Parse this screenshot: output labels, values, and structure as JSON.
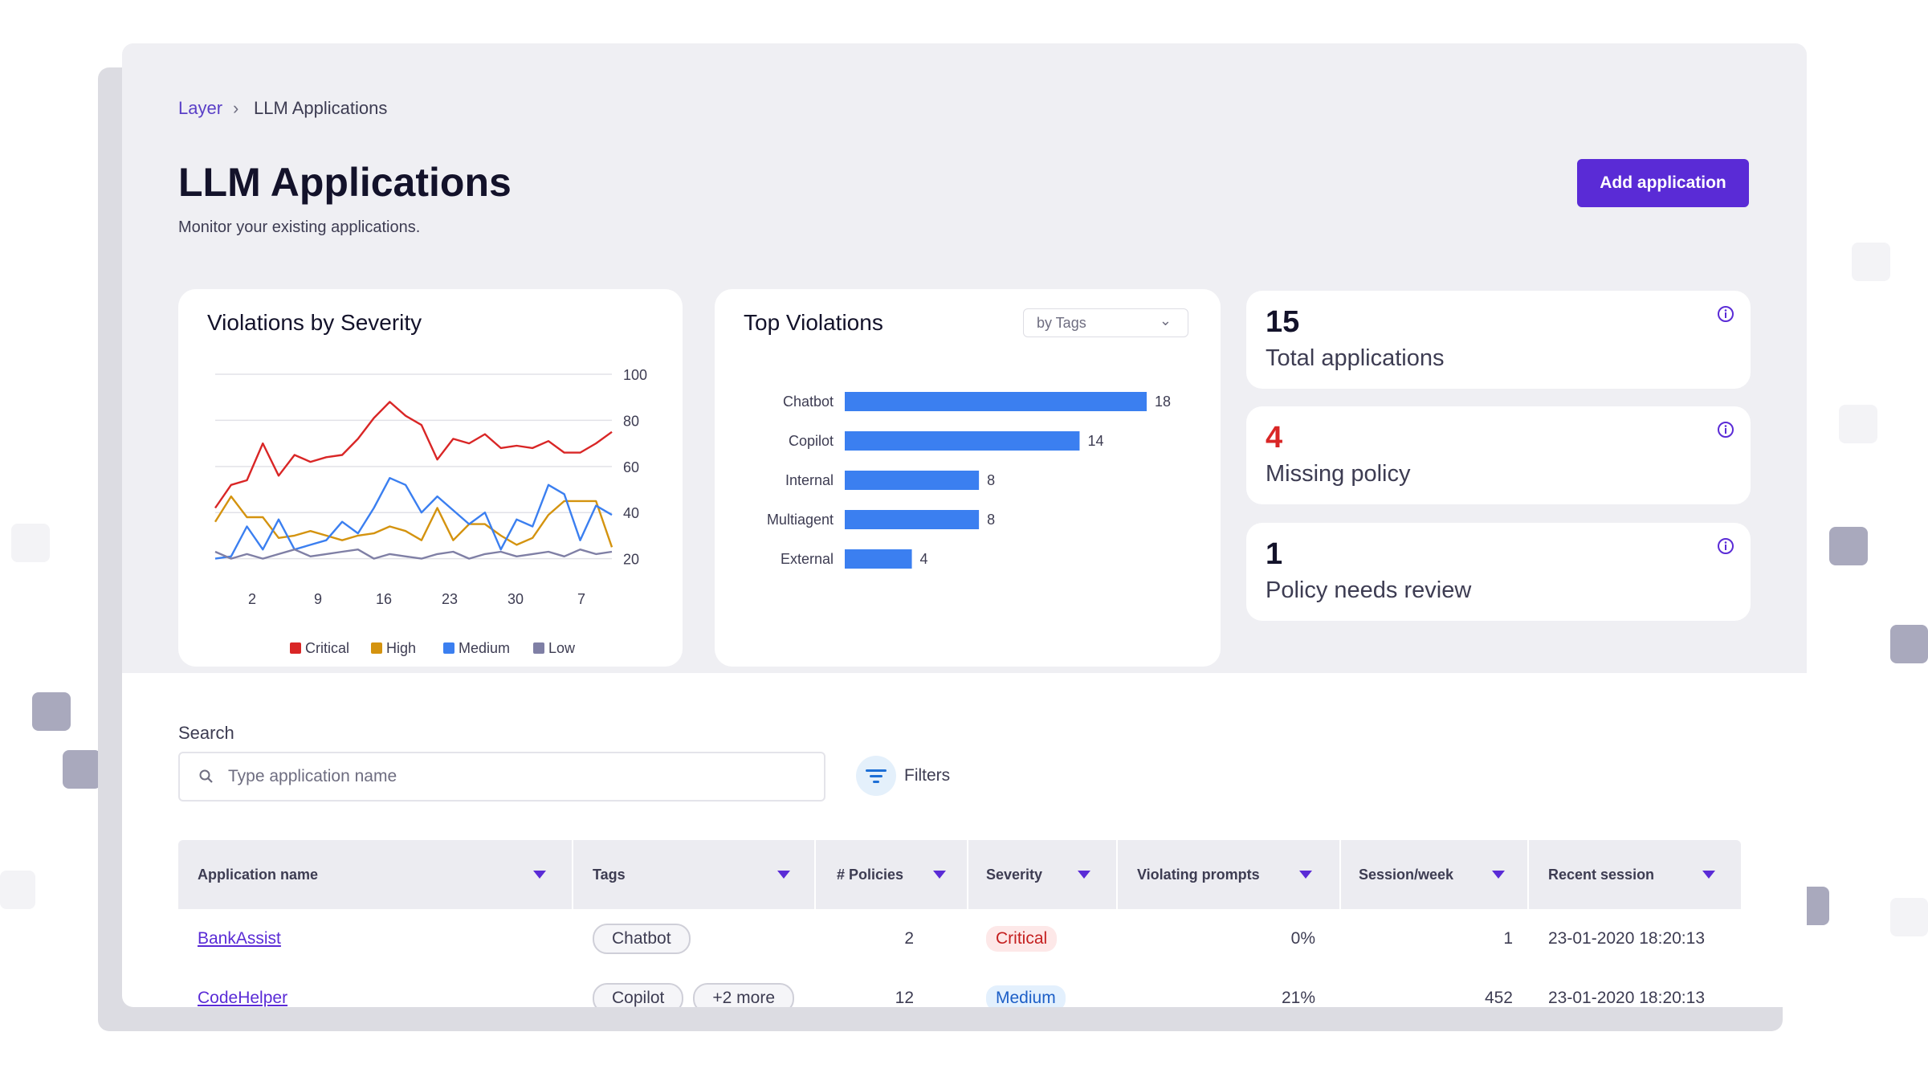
{
  "breadcrumb": {
    "root": "Layer",
    "separator": "›",
    "current": "LLM Applications"
  },
  "header": {
    "title": "LLM Applications",
    "subtitle": "Monitor your existing applications.",
    "add_button": "Add application"
  },
  "colors": {
    "accent": "#5a2bd6",
    "critical": "#d92626",
    "high": "#d4930f",
    "medium": "#3b7ff0",
    "low": "#7f7fa5",
    "bar": "#3b7ff0"
  },
  "severity_card": {
    "title": "Violations by Severity"
  },
  "top_violations_card": {
    "title": "Top Violations",
    "dropdown_value": "by Tags"
  },
  "chart_data": [
    {
      "type": "line",
      "title": "Violations by Severity",
      "x_ticks": [
        "2",
        "9",
        "16",
        "23",
        "30",
        "7"
      ],
      "y_ticks": [
        "100",
        "80",
        "60",
        "40",
        "20"
      ],
      "ylim": [
        15,
        100
      ],
      "grid": true,
      "legend_position": "bottom",
      "series": [
        {
          "name": "Critical",
          "color": "#d92626",
          "values": [
            42,
            52,
            54,
            70,
            56,
            65,
            62,
            64,
            65,
            72,
            81,
            88,
            82,
            78,
            63,
            72,
            70,
            74,
            68,
            69,
            68,
            71,
            66,
            66,
            70,
            75
          ]
        },
        {
          "name": "High",
          "color": "#d4930f",
          "values": [
            36,
            47,
            38,
            38,
            29,
            30,
            32,
            30,
            28,
            30,
            31,
            34,
            32,
            28,
            42,
            28,
            35,
            35,
            30,
            26,
            29,
            39,
            45,
            45,
            45,
            25
          ]
        },
        {
          "name": "Medium",
          "color": "#3b7ff0",
          "values": [
            20,
            21,
            34,
            24,
            37,
            24,
            26,
            28,
            36,
            31,
            42,
            55,
            52,
            40,
            47,
            41,
            35,
            40,
            24,
            37,
            34,
            52,
            48,
            28,
            43,
            39
          ]
        },
        {
          "name": "Low",
          "color": "#7f7fa5",
          "values": [
            23,
            20,
            22,
            20,
            22,
            24,
            21,
            22,
            23,
            24,
            20,
            22,
            21,
            20,
            22,
            23,
            20,
            22,
            23,
            21,
            22,
            23,
            21,
            24,
            22,
            23
          ]
        }
      ]
    },
    {
      "type": "bar",
      "title": "Top Violations",
      "orientation": "horizontal",
      "categories": [
        "Chatbot",
        "Copilot",
        "Internal",
        "Multiagent",
        "External"
      ],
      "values": [
        18,
        14,
        8,
        8,
        4
      ],
      "xlim": [
        0,
        18
      ]
    }
  ],
  "kpis": [
    {
      "value": "15",
      "label": "Total applications",
      "color": "#13122a"
    },
    {
      "value": "4",
      "label": "Missing policy",
      "color": "#d92626"
    },
    {
      "value": "1",
      "label": "Policy needs review",
      "color": "#13122a"
    }
  ],
  "search": {
    "label": "Search",
    "placeholder": "Type application name",
    "value": ""
  },
  "filters": {
    "label": "Filters"
  },
  "table": {
    "columns": [
      "Application name",
      "Tags",
      "# Policies",
      "Severity",
      "Violating prompts",
      "Session/week",
      "Recent session"
    ],
    "rows": [
      {
        "name": "BankAssist",
        "tags": [
          "Chatbot"
        ],
        "policies": "2",
        "severity": "Critical",
        "violating": "0%",
        "sessions": "1",
        "recent": "23-01-2020 18:20:13"
      },
      {
        "name": "CodeHelper",
        "tags": [
          "Copilot",
          "+2 more"
        ],
        "policies": "12",
        "severity": "Medium",
        "violating": "21%",
        "sessions": "452",
        "recent": "23-01-2020 18:20:13"
      }
    ]
  }
}
